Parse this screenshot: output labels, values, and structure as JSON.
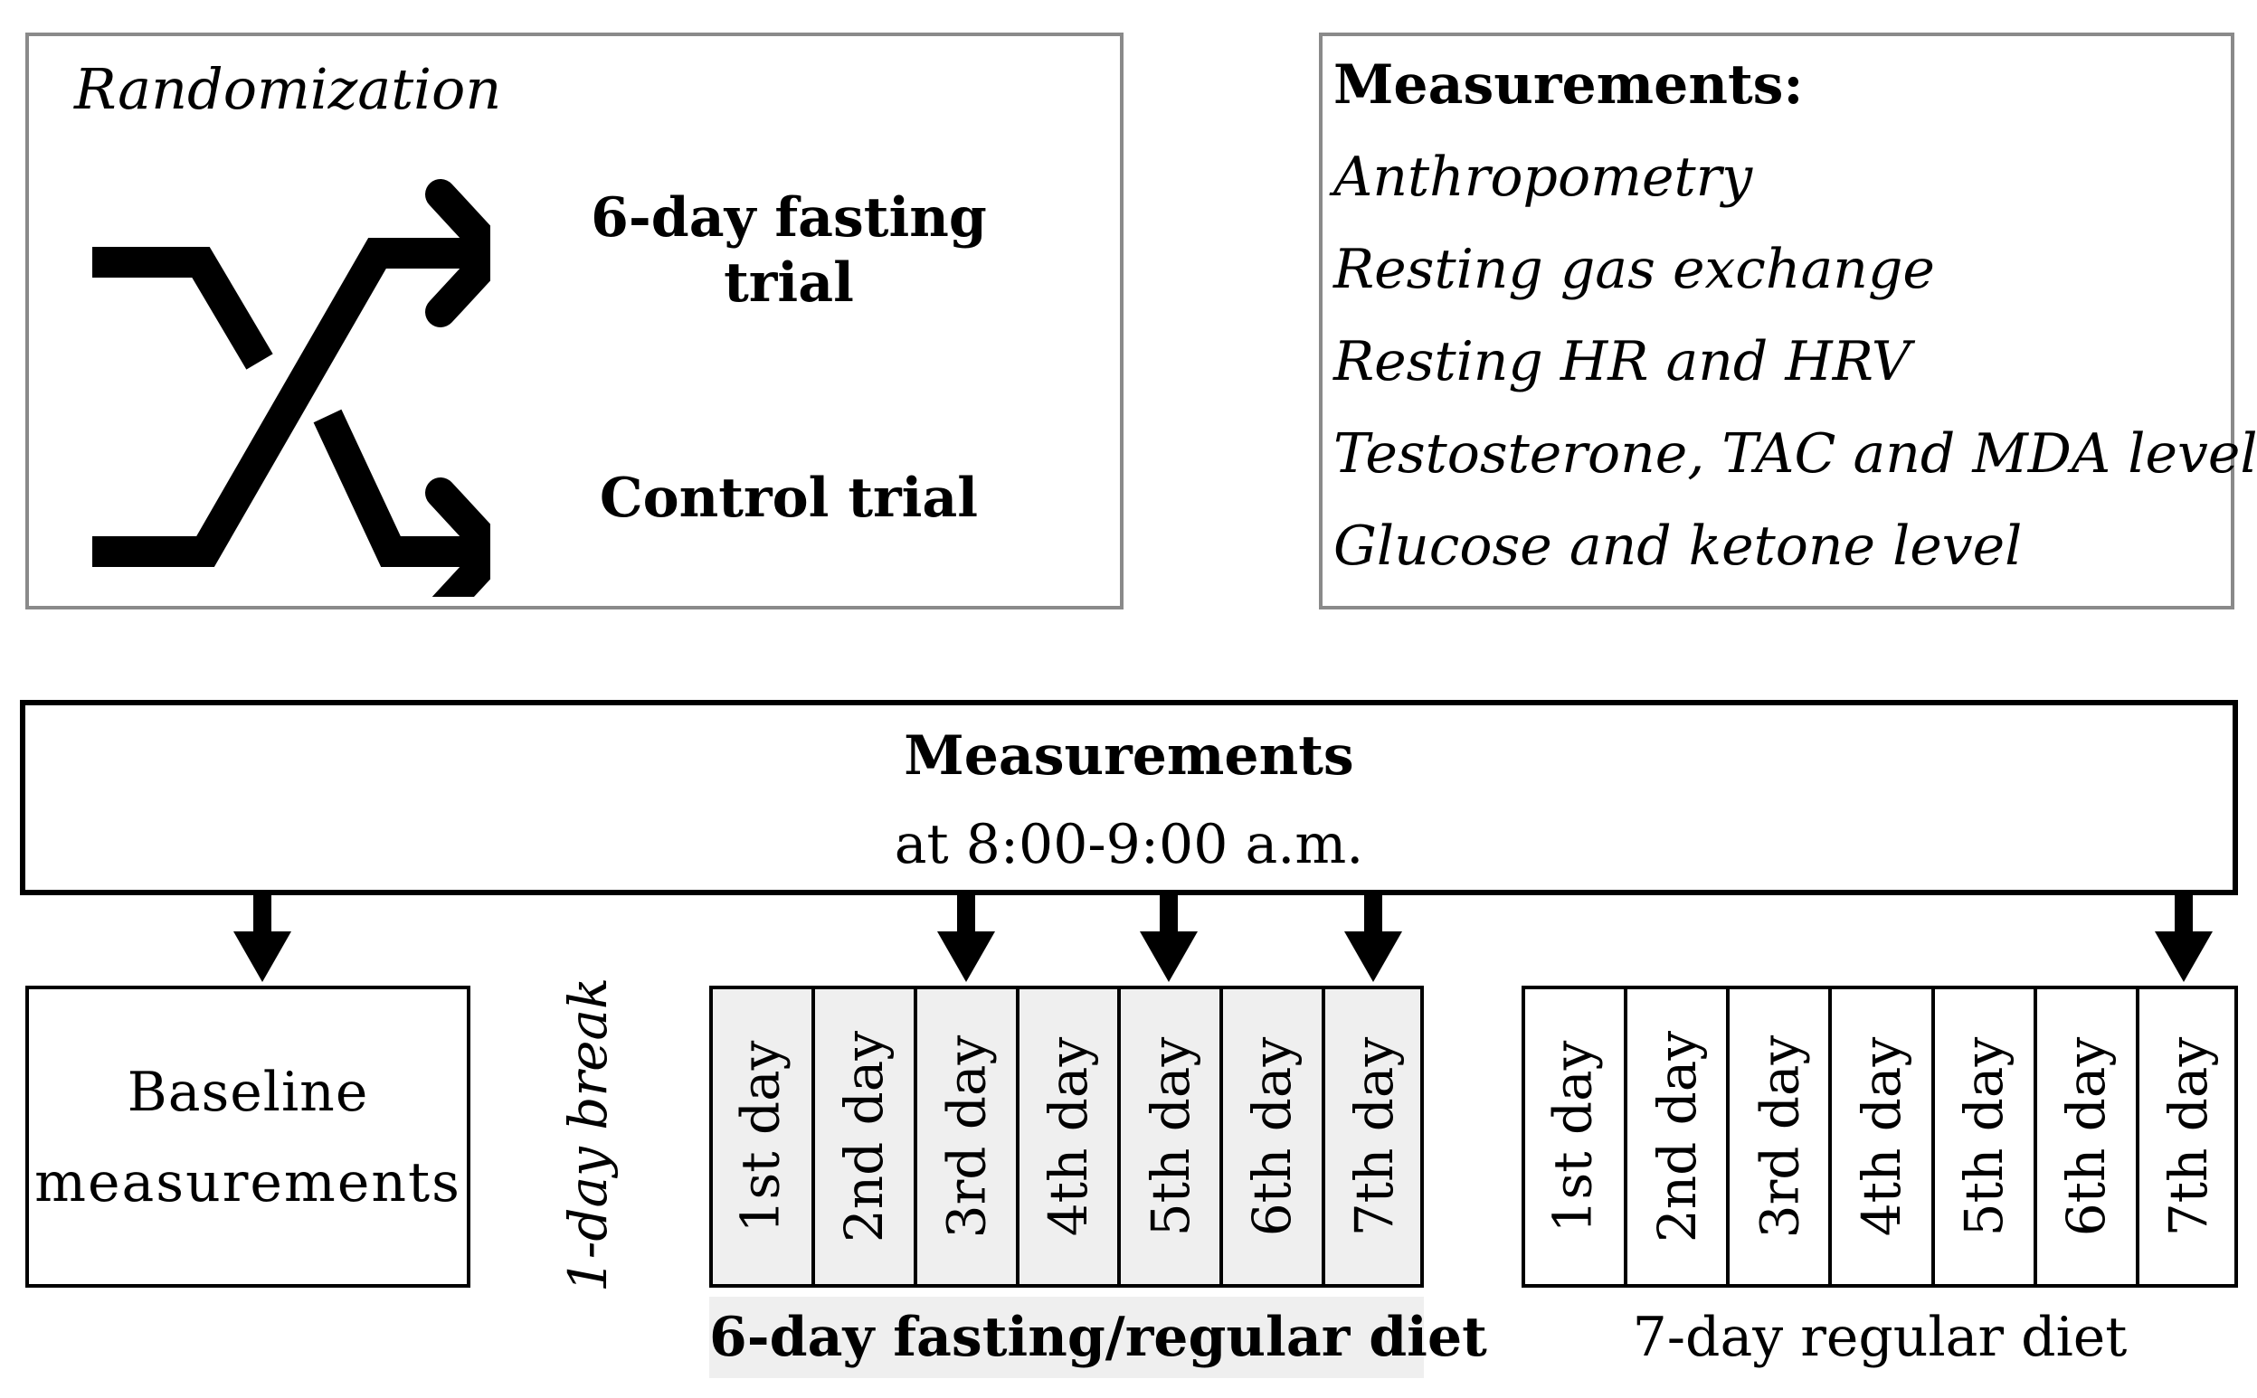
{
  "randomization": {
    "title": "Randomization",
    "option_fasting": "6-day fasting trial",
    "option_control": "Control trial",
    "icon": "shuffle-icon"
  },
  "measurements_list": {
    "title": "Measurements:",
    "items": [
      "Anthropometry",
      "Resting gas exchange",
      "Resting HR and HRV",
      "Testosterone, TAC and MDA level",
      "Glucose and ketone level"
    ]
  },
  "measurements_banner": {
    "title": "Measurements",
    "time": "at 8:00-9:00 a.m."
  },
  "baseline": {
    "line1": "Baseline",
    "line2": "measurements"
  },
  "break_label": "1-day break",
  "fasting_period": {
    "label": "6-day fasting/regular diet",
    "days": [
      "1st day",
      "2nd day",
      "3rd day",
      "4th day",
      "5th day",
      "6th day",
      "7th day"
    ]
  },
  "regular_period": {
    "label": "7-day regular diet",
    "days": [
      "1st day",
      "2nd day",
      "3rd day",
      "4th day",
      "5th day",
      "6th day",
      "7th day"
    ]
  },
  "colors": {
    "fasting_fill": "#efefef",
    "gray_border": "#8a8a8a",
    "black": "#000000"
  }
}
